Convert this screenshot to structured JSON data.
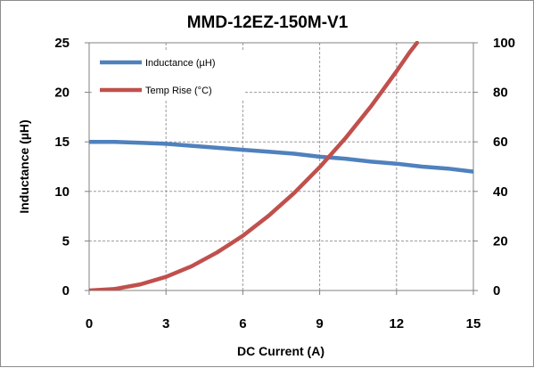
{
  "chart_data": {
    "type": "line",
    "title": "MMD-12EZ-150M-V1",
    "xlabel": "DC Current (A)",
    "ylabel": "Inductance (µH)",
    "y2label": "",
    "xlim": [
      0,
      15
    ],
    "ylim": [
      0,
      25
    ],
    "y2lim": [
      0,
      100
    ],
    "x_ticks": [
      "0",
      "3",
      "6",
      "9",
      "12",
      "15"
    ],
    "y_ticks": [
      "0",
      "5",
      "10",
      "15",
      "20",
      "25"
    ],
    "y2_ticks": [
      "0",
      "20",
      "40",
      "60",
      "80",
      "100"
    ],
    "grid": true,
    "legend_position": "top-left",
    "series": [
      {
        "name": "Inductance (µH)",
        "axis": "left",
        "color": "#4f81bd",
        "x": [
          0,
          1,
          2,
          3,
          4,
          5,
          6,
          7,
          8,
          9,
          10,
          11,
          12,
          13,
          14,
          15
        ],
        "y": [
          15.0,
          15.0,
          14.9,
          14.8,
          14.6,
          14.4,
          14.2,
          14.0,
          13.8,
          13.5,
          13.3,
          13.0,
          12.8,
          12.5,
          12.3,
          12.0
        ]
      },
      {
        "name": "Temp Rise (°C)",
        "axis": "right",
        "color": "#c0504d",
        "x": [
          0,
          1,
          2,
          3,
          4,
          5,
          6,
          7,
          8,
          9,
          10,
          11,
          12,
          12.5,
          12.8
        ],
        "y": [
          0,
          0.6,
          2.5,
          5.5,
          9.8,
          15.4,
          22.1,
          30.1,
          39.3,
          49.8,
          61.4,
          74.3,
          88.5,
          96.0,
          100.0
        ]
      }
    ]
  }
}
